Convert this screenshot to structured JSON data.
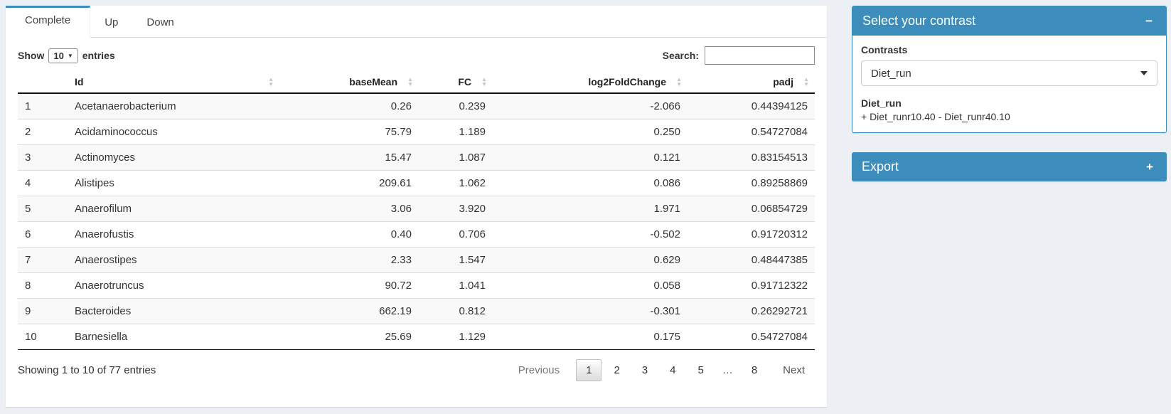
{
  "colors": {
    "primary": "#3c8dbc",
    "page_bg": "#ecf0f5"
  },
  "tabs": [
    {
      "label": "Complete",
      "active": true
    },
    {
      "label": "Up",
      "active": false
    },
    {
      "label": "Down",
      "active": false
    }
  ],
  "length_control": {
    "prefix": "Show",
    "selected": "10",
    "suffix": "entries"
  },
  "search": {
    "label": "Search:",
    "value": ""
  },
  "table": {
    "columns": [
      {
        "label": "",
        "align": "left",
        "sortable": false
      },
      {
        "label": "Id",
        "align": "left",
        "sortable": true
      },
      {
        "label": "baseMean",
        "align": "right",
        "sortable": true
      },
      {
        "label": "FC",
        "align": "right",
        "sortable": true
      },
      {
        "label": "log2FoldChange",
        "align": "right",
        "sortable": true
      },
      {
        "label": "padj",
        "align": "right",
        "sortable": true
      }
    ],
    "rows": [
      [
        "1",
        "Acetanaerobacterium",
        "0.26",
        "0.239",
        "-2.066",
        "0.44394125"
      ],
      [
        "2",
        "Acidaminococcus",
        "75.79",
        "1.189",
        "0.250",
        "0.54727084"
      ],
      [
        "3",
        "Actinomyces",
        "15.47",
        "1.087",
        "0.121",
        "0.83154513"
      ],
      [
        "4",
        "Alistipes",
        "209.61",
        "1.062",
        "0.086",
        "0.89258869"
      ],
      [
        "5",
        "Anaerofilum",
        "3.06",
        "3.920",
        "1.971",
        "0.06854729"
      ],
      [
        "6",
        "Anaerofustis",
        "0.40",
        "0.706",
        "-0.502",
        "0.91720312"
      ],
      [
        "7",
        "Anaerostipes",
        "2.33",
        "1.547",
        "0.629",
        "0.48447385"
      ],
      [
        "8",
        "Anaerotruncus",
        "90.72",
        "1.041",
        "0.058",
        "0.91712322"
      ],
      [
        "9",
        "Bacteroides",
        "662.19",
        "0.812",
        "-0.301",
        "0.26292721"
      ],
      [
        "10",
        "Barnesiella",
        "25.69",
        "1.129",
        "0.175",
        "0.54727084"
      ]
    ],
    "info": "Showing 1 to 10 of 77 entries"
  },
  "pagination": {
    "previous": "Previous",
    "pages": [
      "1",
      "2",
      "3",
      "4",
      "5",
      "…",
      "8"
    ],
    "active": "1",
    "next": "Next"
  },
  "contrast_box": {
    "title": "Select your contrast",
    "collapse_icon": "−",
    "label": "Contrasts",
    "selected": "Diet_run",
    "detail_title": "Diet_run",
    "detail_text": "+ Diet_runr10.40 - Diet_runr40.10"
  },
  "export_box": {
    "title": "Export",
    "expand_icon": "+"
  }
}
